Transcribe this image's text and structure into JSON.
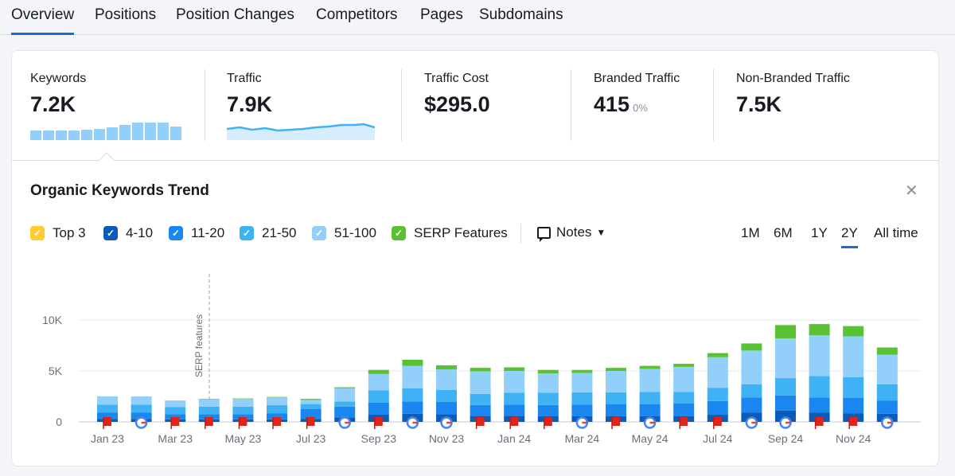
{
  "tabs": [
    {
      "label": "Overview",
      "active": true
    },
    {
      "label": "Positions",
      "active": false
    },
    {
      "label": "Position Changes",
      "active": false
    },
    {
      "label": "Competitors",
      "active": false
    },
    {
      "label": "Pages",
      "active": false
    },
    {
      "label": "Subdomains",
      "active": false
    }
  ],
  "metrics": [
    {
      "label": "Keywords",
      "value": "7.2K"
    },
    {
      "label": "Traffic",
      "value": "7.9K"
    },
    {
      "label": "Traffic Cost",
      "value": "$295.0"
    },
    {
      "label": "Branded Traffic",
      "value": "415",
      "sub": "0%"
    },
    {
      "label": "Non-Branded Traffic",
      "value": "7.5K"
    }
  ],
  "section": {
    "title": "Organic Keywords Trend",
    "close_icon": "close-icon"
  },
  "legend": [
    {
      "label": "Top 3",
      "color": "#ffcc33"
    },
    {
      "label": "4-10",
      "color": "#0a5cb8"
    },
    {
      "label": "11-20",
      "color": "#1a86f0"
    },
    {
      "label": "21-50",
      "color": "#3fb2f5"
    },
    {
      "label": "51-100",
      "color": "#92d0fb"
    },
    {
      "label": "SERP Features",
      "color": "#5ac132"
    }
  ],
  "notes": {
    "label": "Notes",
    "icon": "notes-icon"
  },
  "periods": [
    {
      "label": "1M",
      "active": false
    },
    {
      "label": "6M",
      "active": false
    },
    {
      "label": "1Y",
      "active": false
    },
    {
      "label": "2Y",
      "active": true
    },
    {
      "label": "All time",
      "active": false
    }
  ],
  "chart_data": {
    "type": "bar",
    "stacked": true,
    "annotation": "SERP features",
    "y_ticks": [
      "0",
      "5K",
      "10K"
    ],
    "ylim": [
      0,
      12000
    ],
    "x_tick_labels": [
      "Jan 23",
      "Mar 23",
      "May 23",
      "Jul 23",
      "Sep 23",
      "Nov 23",
      "Jan 24",
      "Mar 24",
      "May 24",
      "Jul 24",
      "Sep 24",
      "Nov 24"
    ],
    "categories": [
      "Jan 23",
      "Feb 23",
      "Mar 23",
      "Apr 23",
      "May 23",
      "Jun 23",
      "Jul 23",
      "Aug 23",
      "Sep 23",
      "Oct 23",
      "Nov 23",
      "Dec 23",
      "Jan 24",
      "Feb 24",
      "Mar 24",
      "Apr 24",
      "May 24",
      "Jun 24",
      "Jul 24",
      "Aug 24",
      "Sep 24",
      "Oct 24",
      "Nov 24",
      "Dec 24"
    ],
    "series": [
      {
        "name": "Top 3",
        "color": "#ffcc33",
        "values": [
          0,
          0,
          0,
          0,
          0,
          0,
          0,
          0,
          0,
          0,
          0,
          0,
          0,
          0,
          0,
          0,
          0,
          0,
          0,
          0,
          0,
          0,
          0,
          0
        ]
      },
      {
        "name": "4-10",
        "color": "#0a5cb8",
        "values": [
          300,
          300,
          250,
          250,
          250,
          250,
          300,
          450,
          700,
          800,
          750,
          600,
          600,
          550,
          550,
          550,
          550,
          550,
          700,
          900,
          1100,
          900,
          850,
          800
        ]
      },
      {
        "name": "11-20",
        "color": "#1a86f0",
        "values": [
          600,
          600,
          500,
          500,
          500,
          600,
          950,
          1050,
          1200,
          1200,
          1200,
          1050,
          1100,
          1100,
          1150,
          1200,
          1200,
          1250,
          1350,
          1500,
          1500,
          1500,
          1500,
          1300
        ]
      },
      {
        "name": "21-50",
        "color": "#3fb2f5",
        "values": [
          800,
          800,
          700,
          750,
          750,
          800,
          500,
          500,
          1200,
          1300,
          1200,
          1100,
          1150,
          1200,
          1200,
          1150,
          1200,
          1150,
          1300,
          1300,
          1700,
          2100,
          2050,
          1600
        ]
      },
      {
        "name": "51-100",
        "color": "#92d0fb",
        "values": [
          800,
          800,
          650,
          700,
          750,
          750,
          400,
          1300,
          1600,
          2200,
          2000,
          2200,
          2150,
          1900,
          1900,
          2100,
          2250,
          2450,
          3000,
          3300,
          3900,
          4000,
          4000,
          2900
        ]
      },
      {
        "name": "SERP Features",
        "color": "#5ac132",
        "values": [
          0,
          0,
          0,
          50,
          50,
          50,
          100,
          100,
          400,
          600,
          400,
          350,
          350,
          350,
          300,
          300,
          300,
          300,
          400,
          700,
          1300,
          1100,
          1000,
          700
        ]
      }
    ],
    "markers": [
      "flag",
      "google",
      "flag",
      "flag",
      "flag",
      "flag",
      "flag",
      "google",
      "flag",
      "google",
      "google",
      "flag",
      "flag",
      "flag",
      "google",
      "flag",
      "google",
      "flag",
      "flag",
      "google",
      "google",
      "flag",
      "flag",
      "google"
    ]
  }
}
